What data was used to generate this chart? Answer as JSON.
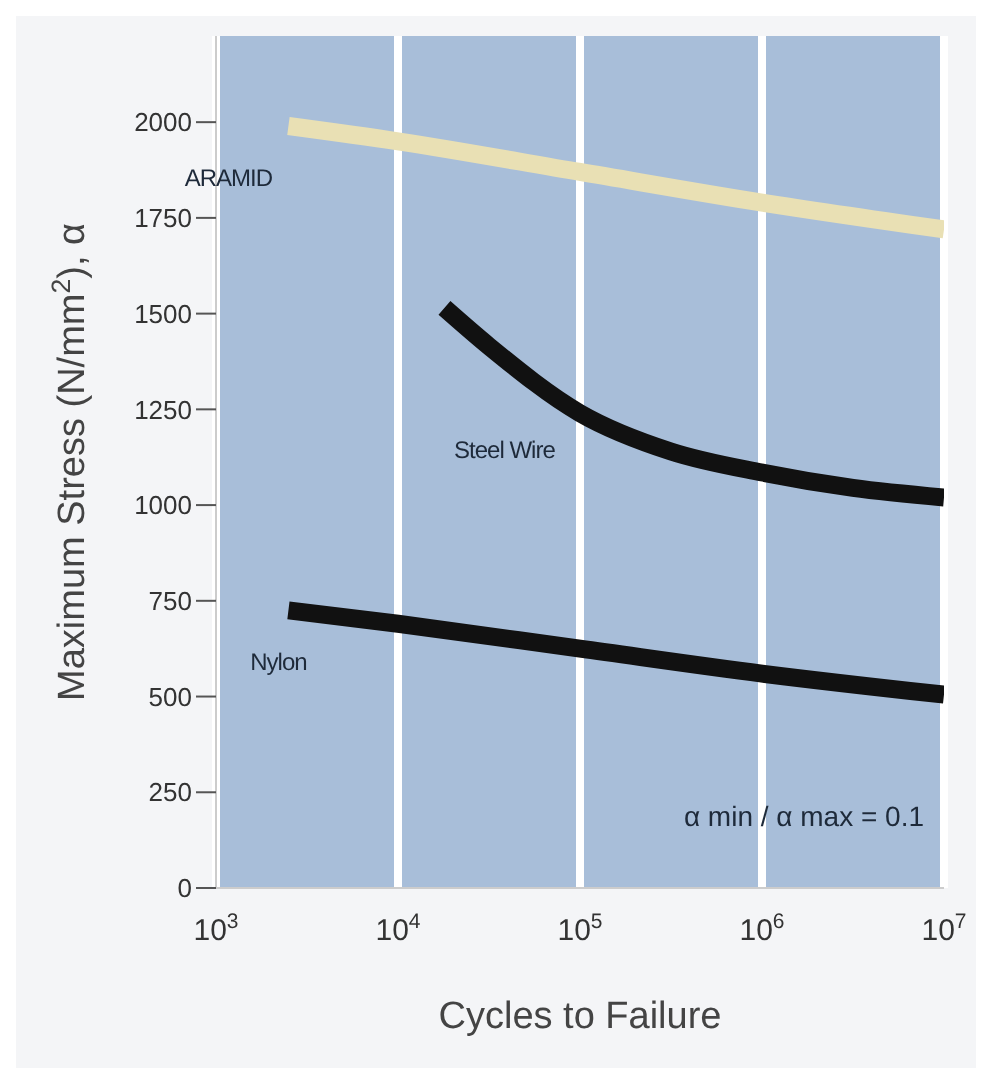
{
  "chart_data": {
    "type": "line",
    "xlabel": "Cycles to Failure",
    "ylabel": "Maximum Stress (N/mm$^{2}$), α",
    "log": "x",
    "grid": "x",
    "legend": false,
    "marker": "none",
    "line_style": "solid",
    "xlim": [
      1000,
      10000000
    ],
    "xticks": [
      {
        "value": 1000,
        "label": "10$^{3}$"
      },
      {
        "value": 10000,
        "label": "10$^{4}$"
      },
      {
        "value": 100000,
        "label": "10$^{5}$"
      },
      {
        "value": 1000000,
        "label": "10$^{6}$"
      },
      {
        "value": 10000000,
        "label": "10$^{7}$"
      }
    ],
    "ylim": [
      0,
      2225
    ],
    "yticks": [
      0,
      250,
      500,
      750,
      1000,
      1250,
      1500,
      1750,
      2000
    ],
    "series": [
      {
        "name": "ARAMID",
        "color": "#e9e0b4",
        "x": [
          2500,
          10000,
          100000,
          1000000,
          10000000
        ],
        "values": [
          1990,
          1950,
          1870,
          1790,
          1720
        ]
      },
      {
        "name": "Steel Wire",
        "color": "#111111",
        "x": [
          18000,
          31600,
          100000,
          316000,
          1000000,
          3160000,
          10000000
        ],
        "values": [
          1515,
          1415,
          1240,
          1140,
          1085,
          1045,
          1020
        ]
      },
      {
        "name": "Nylon",
        "color": "#111111",
        "x": [
          2500,
          10000,
          100000,
          1000000,
          10000000
        ],
        "values": [
          725,
          690,
          625,
          560,
          505
        ]
      }
    ],
    "annotations": [
      "α min / α max = 0.1"
    ]
  }
}
